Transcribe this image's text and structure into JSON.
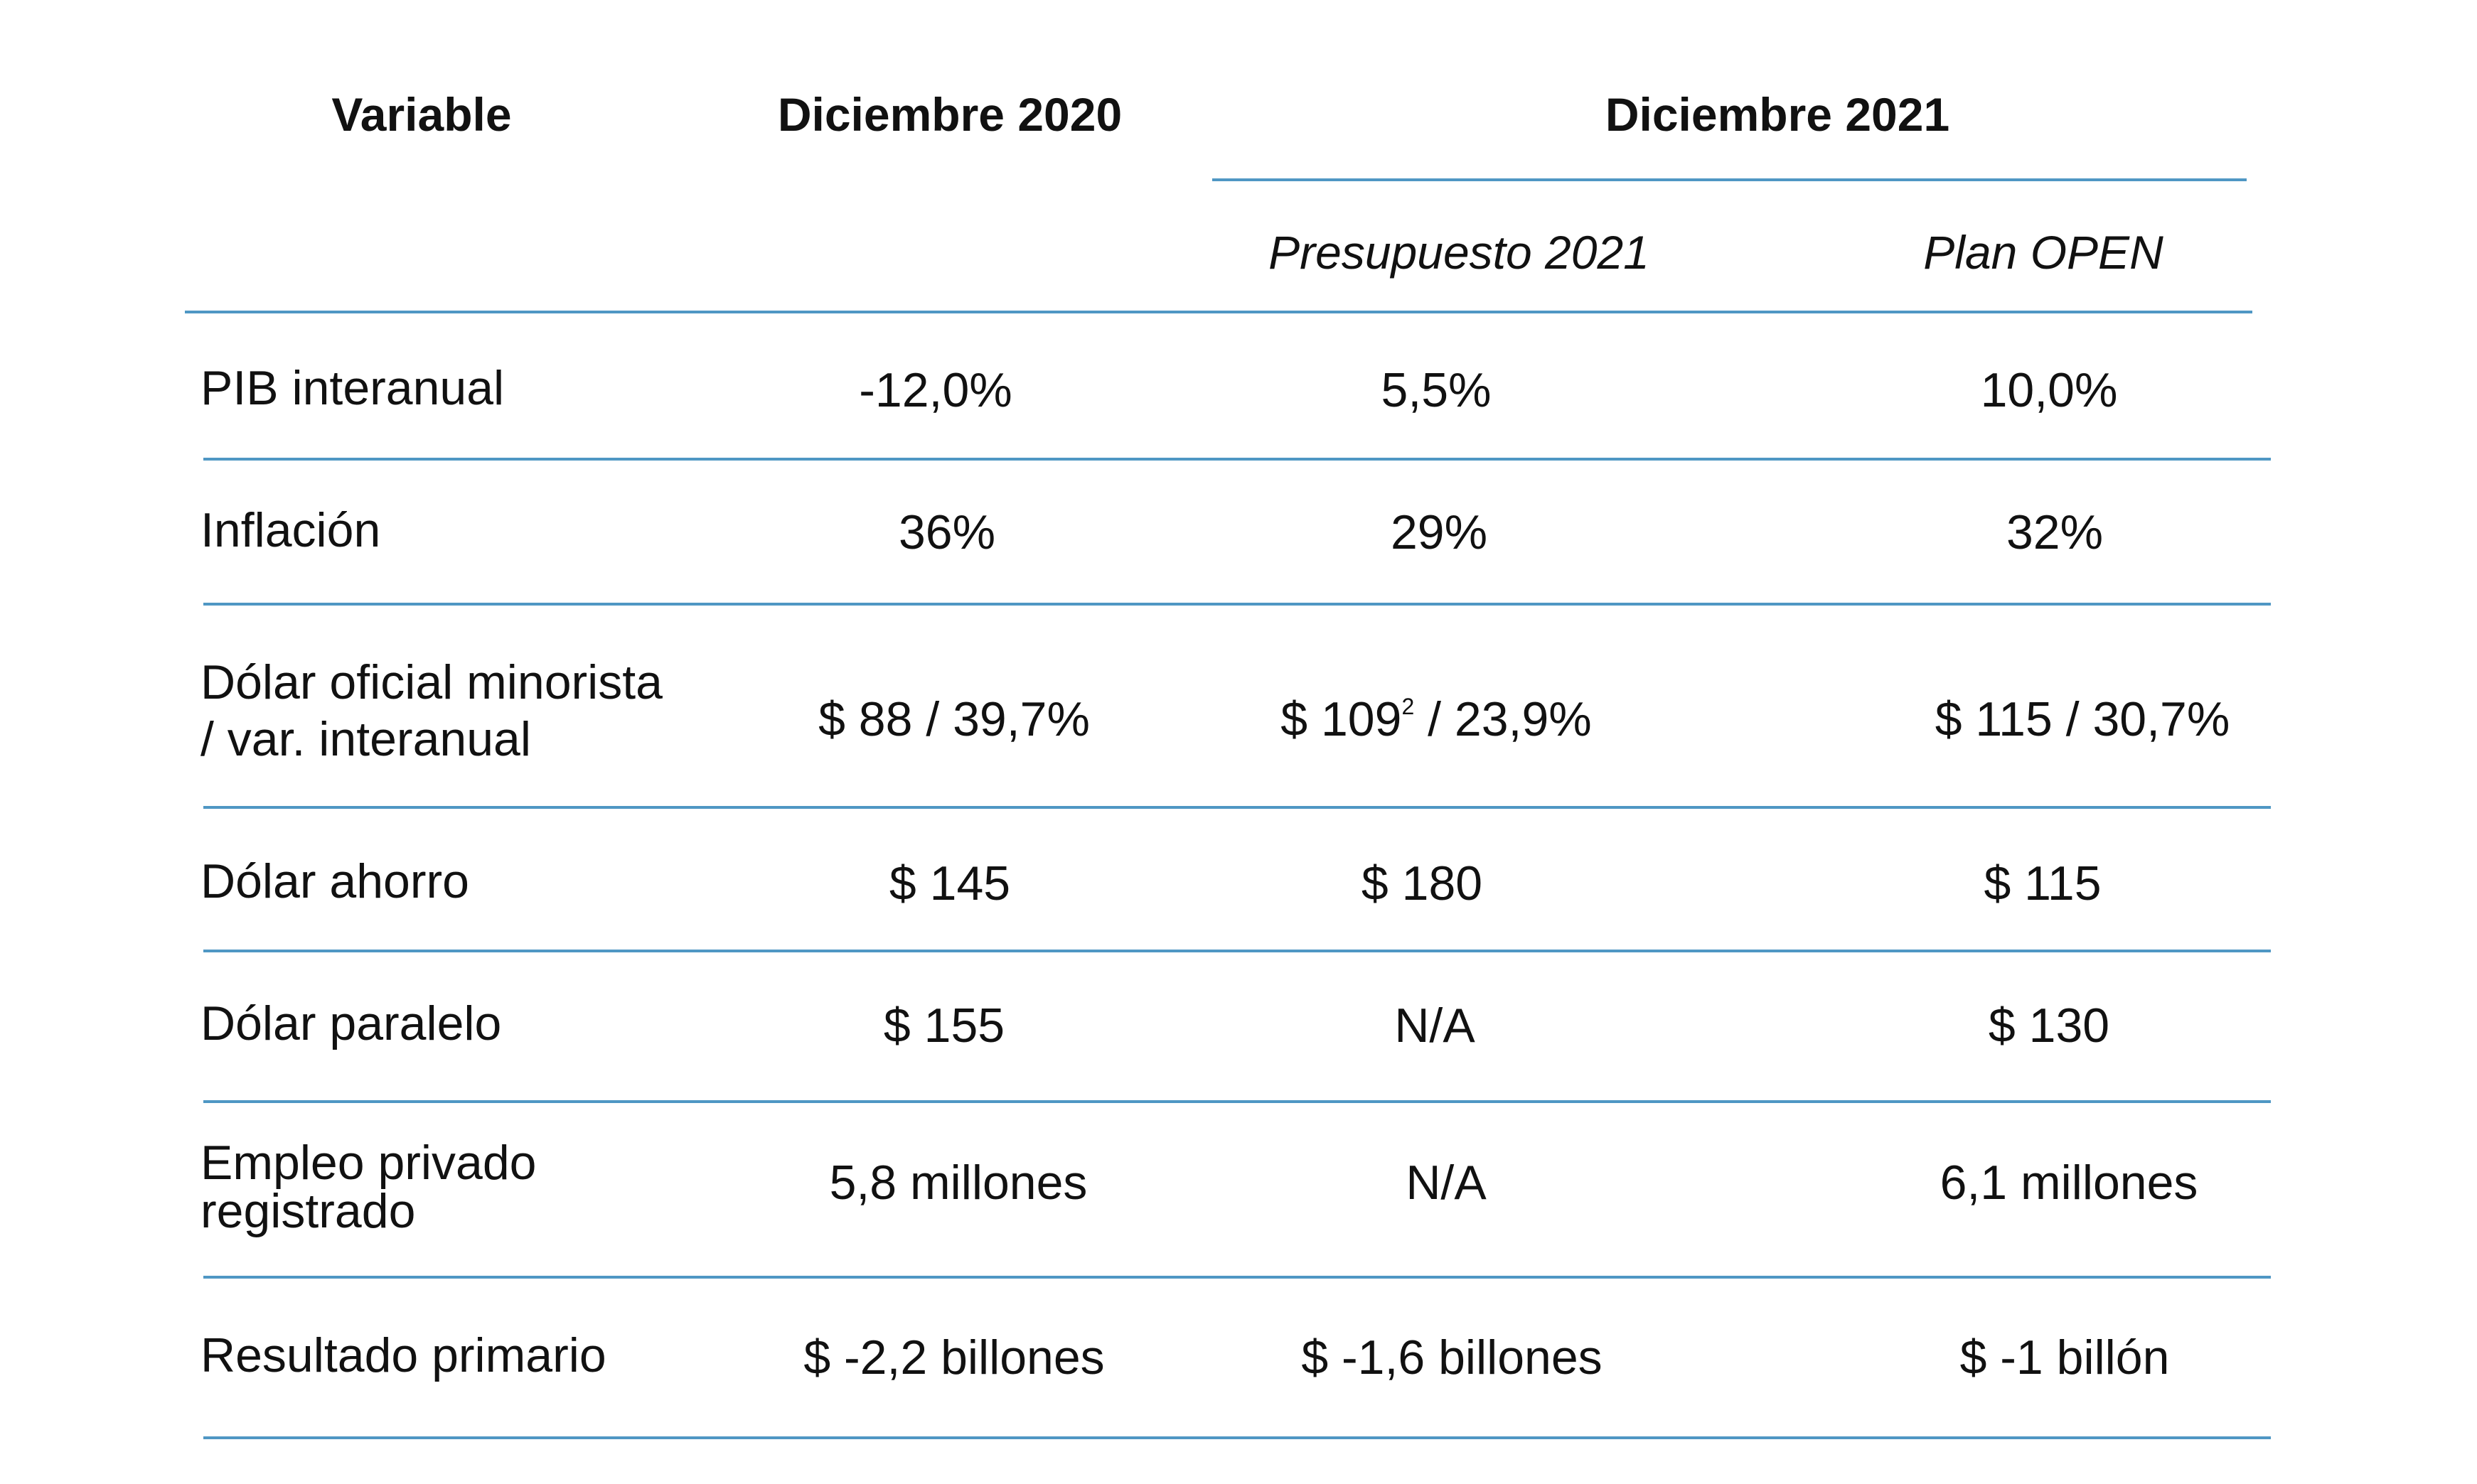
{
  "table": {
    "headers": {
      "variable": "Variable",
      "dic2020": "Diciembre 2020",
      "dic2021": "Diciembre 2021"
    },
    "subheaders": {
      "presupuesto": "Presupuesto 2021",
      "plan_open": "Plan OPEN"
    },
    "rule_color": "#4f97c4",
    "rows": [
      {
        "label": "PIB interanual",
        "dic2020": "-12,0%",
        "presupuesto": "5,5%",
        "plan_open": "10,0%"
      },
      {
        "label": "Inflación",
        "dic2020": "36%",
        "presupuesto": "29%",
        "plan_open": "32%"
      },
      {
        "label_line1": "Dólar oficial minorista",
        "label_line2": "/ var. interanual",
        "dic2020": "$ 88 / 39,7%",
        "presupuesto_main": "$ 109",
        "presupuesto_sup": "2",
        "presupuesto_rest": " / 23,9%",
        "plan_open": "$ 115 / 30,7%"
      },
      {
        "label": "Dólar ahorro",
        "dic2020": "$ 145",
        "presupuesto": "$ 180",
        "plan_open": "$ 115"
      },
      {
        "label": "Dólar paralelo",
        "dic2020": "$ 155",
        "presupuesto": "N/A",
        "plan_open": "$ 130"
      },
      {
        "label_line1": "Empleo privado",
        "label_line2": "registrado",
        "dic2020": "5,8 millones",
        "presupuesto": "N/A",
        "plan_open": "6,1 millones"
      },
      {
        "label": "Resultado primario",
        "dic2020": "$ -2,2 billones",
        "presupuesto": "$ -1,6 billones",
        "plan_open": "$ -1 billón"
      }
    ]
  }
}
